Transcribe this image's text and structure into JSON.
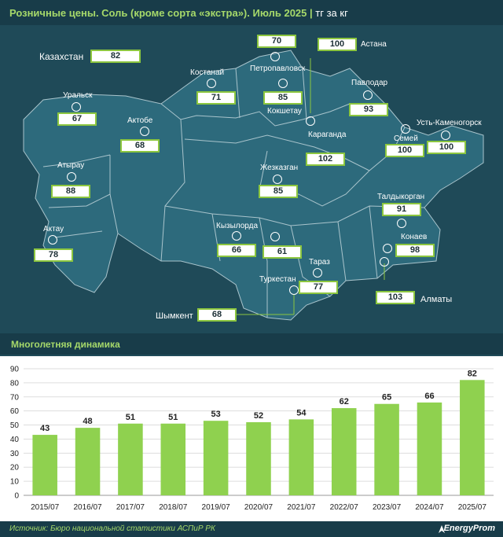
{
  "header": {
    "title": "Розничные цены. Соль (кроме сорта «экстра»). Июль 2025",
    "unit": "тг за кг"
  },
  "colors": {
    "accent": "#8cc63f",
    "bar": "#8fd14f",
    "background": "#1f4a58",
    "header": "#183c49"
  },
  "map": {
    "country": {
      "name": "Казахстан",
      "value": "82"
    },
    "regions": [
      {
        "name": "Уральск",
        "value": "67"
      },
      {
        "name": "Актобе",
        "value": "68"
      },
      {
        "name": "Атырау",
        "value": "88"
      },
      {
        "name": "Актау",
        "value": "78"
      },
      {
        "name": "Костанай",
        "value": "71"
      },
      {
        "name": "Петропавловск",
        "value": "85"
      },
      {
        "name": "Кокшетау",
        "value": "70"
      },
      {
        "name": "Астана",
        "value": "100"
      },
      {
        "name": "Павлодар",
        "value": "93"
      },
      {
        "name": "Семей",
        "value": "100"
      },
      {
        "name": "Усть-Каменогорск",
        "value": "100"
      },
      {
        "name": "Караганда",
        "value": "102"
      },
      {
        "name": "Жезказган",
        "value": "85"
      },
      {
        "name": "Кызылорда",
        "value": "66"
      },
      {
        "name": "Туркестан",
        "value": "61"
      },
      {
        "name": "Шымкент",
        "value": "68"
      },
      {
        "name": "Тараз",
        "value": "77"
      },
      {
        "name": "Талдыкорган",
        "value": "91"
      },
      {
        "name": "Конаев",
        "value": "98"
      },
      {
        "name": "Алматы",
        "value": "103"
      }
    ]
  },
  "dynamics": {
    "title": "Многолетняя динамика"
  },
  "chart_data": {
    "type": "bar",
    "title": "Многолетняя динамика",
    "categories": [
      "2015/07",
      "2016/07",
      "2017/07",
      "2018/07",
      "2019/07",
      "2020/07",
      "2021/07",
      "2022/07",
      "2023/07",
      "2024/07",
      "2025/07"
    ],
    "values": [
      43,
      48,
      51,
      51,
      53,
      52,
      54,
      62,
      65,
      66,
      82
    ],
    "ylim": [
      0,
      90
    ],
    "yticks": [
      0,
      10,
      20,
      30,
      40,
      50,
      60,
      70,
      80,
      90
    ],
    "grid": true,
    "xlabel": "",
    "ylabel": ""
  },
  "footer": {
    "source": "Источник: Бюро национальной статистики АСПиР РК",
    "brand": "EnergyProm"
  }
}
